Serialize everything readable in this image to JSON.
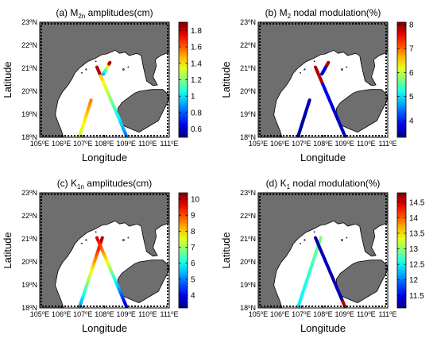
{
  "colors": {
    "land": "#6e6e6e",
    "sea": "#ffffff",
    "coast": "#000000",
    "colormap": "jet"
  },
  "x_ticks": [
    "105°E",
    "106°E",
    "107°E",
    "108°E",
    "109°E",
    "110°E",
    "111°E"
  ],
  "y_ticks": [
    "18°N",
    "19°N",
    "20°N",
    "21°N",
    "22°N",
    "23°N"
  ],
  "x_label": "Longitude",
  "y_label": "Latitude",
  "panels": [
    {
      "id": "a",
      "title_pre": "(a) M",
      "title_sub": "2n",
      "title_post": " amplitudes(cm)",
      "colorbar_ticks": [
        "1.8",
        "1.6",
        "1.4",
        "1.2",
        "1",
        "0.8",
        "0.6"
      ],
      "cmin": 0.5,
      "cmax": 1.9,
      "coloring": "a"
    },
    {
      "id": "b",
      "title_pre": "(b) M",
      "title_sub": "2",
      "title_post": " nodal modulation(%)",
      "colorbar_ticks": [
        "8",
        "7",
        "6",
        "5",
        "4"
      ],
      "cmin": 3.3,
      "cmax": 8.1,
      "coloring": "b"
    },
    {
      "id": "c",
      "title_pre": "(c) K",
      "title_sub": "1n",
      "title_post": " amplitudes(cm)",
      "colorbar_ticks": [
        "10",
        "9",
        "8",
        "7",
        "6",
        "5",
        "4"
      ],
      "cmin": 3.2,
      "cmax": 10.4,
      "coloring": "c"
    },
    {
      "id": "d",
      "title_pre": "(d) K",
      "title_sub": "1",
      "title_post": " nodal modulation(%)",
      "colorbar_ticks": [
        "14.5",
        "14",
        "13.5",
        "13",
        "12.5",
        "12",
        "11.5"
      ],
      "cmin": 11.1,
      "cmax": 14.8,
      "coloring": "d"
    }
  ]
}
